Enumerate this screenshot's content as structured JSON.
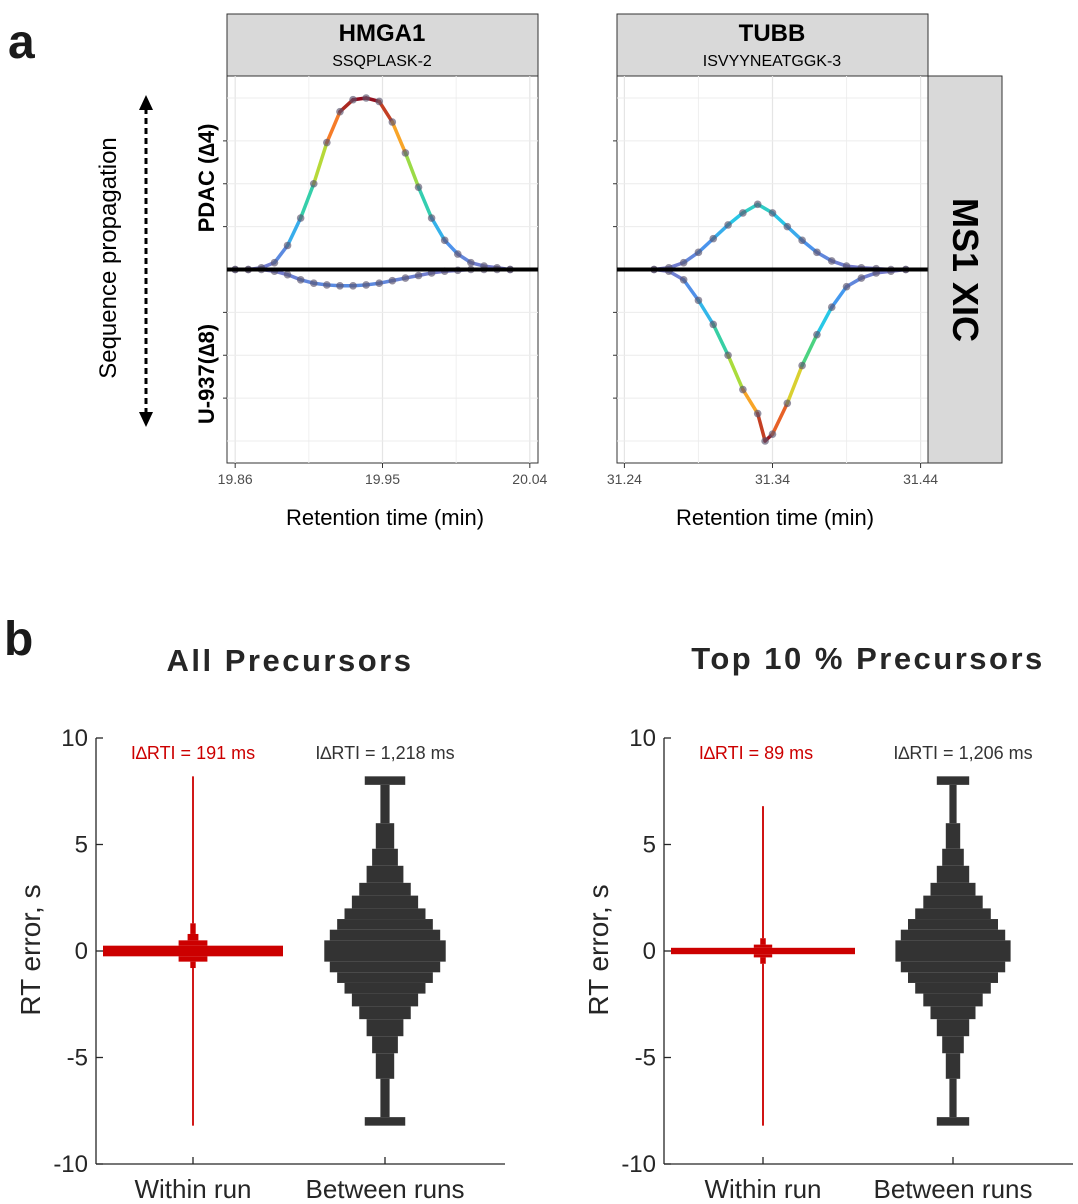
{
  "panel_a": {
    "letter": "a",
    "side_label": "Sequence propagation",
    "row_labels": [
      "PDAC (∆4)",
      "U-937(∆8)"
    ],
    "facet_label": "MS1 XIC",
    "x_label": "Retention time (min)"
  },
  "panel_b": {
    "letter": "b",
    "y_label": "RT error, s",
    "categories": [
      "Within run",
      "Between runs"
    ]
  },
  "chart_data": [
    {
      "type": "line",
      "title": "HMGA1",
      "subtitle": "SSQPLASK-2",
      "xlabel": "Retention time (min)",
      "xticks": [
        "19.86",
        "19.95",
        "20.04"
      ],
      "xlim": [
        19.855,
        20.045
      ],
      "ylim": [
        -1.05,
        1.05
      ],
      "series": [
        {
          "name": "PDAC (∆4)",
          "x": [
            19.86,
            19.868,
            19.876,
            19.884,
            19.892,
            19.9,
            19.908,
            19.916,
            19.924,
            19.932,
            19.94,
            19.948,
            19.956,
            19.964,
            19.972,
            19.98,
            19.988,
            19.996,
            20.004,
            20.012,
            20.02,
            20.028
          ],
          "y": [
            0,
            0,
            0.01,
            0.04,
            0.14,
            0.3,
            0.5,
            0.74,
            0.92,
            0.99,
            1.0,
            0.98,
            0.86,
            0.68,
            0.48,
            0.3,
            0.17,
            0.09,
            0.04,
            0.02,
            0.01,
            0
          ]
        },
        {
          "name": "U-937(∆8)",
          "x": [
            19.86,
            19.868,
            19.876,
            19.884,
            19.892,
            19.9,
            19.908,
            19.916,
            19.924,
            19.932,
            19.94,
            19.948,
            19.956,
            19.964,
            19.972,
            19.98,
            19.988,
            19.996,
            20.004,
            20.012,
            20.02,
            20.028
          ],
          "y": [
            0,
            0,
            0,
            -0.01,
            -0.03,
            -0.06,
            -0.08,
            -0.09,
            -0.095,
            -0.095,
            -0.09,
            -0.08,
            -0.065,
            -0.05,
            -0.035,
            -0.02,
            -0.01,
            -0.005,
            0,
            0,
            0,
            0
          ]
        }
      ]
    },
    {
      "type": "line",
      "title": "TUBB",
      "subtitle": "ISVYYNEATGGK-3",
      "xlabel": "Retention time (min)",
      "xticks": [
        "31.24",
        "31.34",
        "31.44"
      ],
      "xlim": [
        31.235,
        31.445
      ],
      "ylim": [
        -1.05,
        1.05
      ],
      "series": [
        {
          "name": "PDAC (∆4)",
          "x": [
            31.26,
            31.27,
            31.28,
            31.29,
            31.3,
            31.31,
            31.32,
            31.33,
            31.34,
            31.35,
            31.36,
            31.37,
            31.38,
            31.39,
            31.4,
            31.41,
            31.42,
            31.43
          ],
          "y": [
            0,
            0.01,
            0.04,
            0.1,
            0.18,
            0.26,
            0.33,
            0.38,
            0.33,
            0.25,
            0.17,
            0.1,
            0.05,
            0.02,
            0.01,
            0.005,
            0,
            0
          ]
        },
        {
          "name": "U-937(∆8)",
          "x": [
            31.26,
            31.27,
            31.28,
            31.29,
            31.3,
            31.31,
            31.32,
            31.33,
            31.335,
            31.34,
            31.35,
            31.36,
            31.37,
            31.38,
            31.39,
            31.4,
            31.41,
            31.42,
            31.43
          ],
          "y": [
            0,
            -0.01,
            -0.06,
            -0.18,
            -0.32,
            -0.5,
            -0.7,
            -0.84,
            -1.0,
            -0.96,
            -0.78,
            -0.56,
            -0.38,
            -0.22,
            -0.1,
            -0.05,
            -0.02,
            -0.01,
            0
          ]
        }
      ]
    },
    {
      "type": "histogram-violin",
      "title": "All Precursors",
      "ylabel": "RT error, s",
      "ylim": [
        -10,
        10
      ],
      "yticks": [
        10,
        5,
        0,
        -5,
        -10
      ],
      "categories": [
        "Within run",
        "Between runs"
      ],
      "annotations": [
        "I∆RTI = 191 ms",
        "I∆RTI = 1,218 ms"
      ],
      "colors": [
        "#cc0000",
        "#333333"
      ],
      "series": [
        {
          "name": "Within run",
          "bins": [
            [
              -8.2,
              -0.8,
              0.01
            ],
            [
              -0.8,
              -0.5,
              0.03
            ],
            [
              -0.5,
              -0.25,
              0.16
            ],
            [
              -0.25,
              0.25,
              1.0
            ],
            [
              0.25,
              0.5,
              0.16
            ],
            [
              0.5,
              0.8,
              0.06
            ],
            [
              0.8,
              1.3,
              0.03
            ],
            [
              1.3,
              8.2,
              0.01
            ]
          ]
        },
        {
          "name": "Between runs",
          "bins": [
            [
              -8.2,
              -7.8,
              0.22
            ],
            [
              -7.8,
              -6.0,
              0.05
            ],
            [
              -6.0,
              -4.8,
              0.1
            ],
            [
              -4.8,
              -4.0,
              0.14
            ],
            [
              -4.0,
              -3.2,
              0.2
            ],
            [
              -3.2,
              -2.6,
              0.28
            ],
            [
              -2.6,
              -2.0,
              0.36
            ],
            [
              -2.0,
              -1.5,
              0.44
            ],
            [
              -1.5,
              -1.0,
              0.52
            ],
            [
              -1.0,
              -0.5,
              0.6
            ],
            [
              -0.5,
              0.5,
              0.66
            ],
            [
              0.5,
              1.0,
              0.6
            ],
            [
              1.0,
              1.5,
              0.52
            ],
            [
              1.5,
              2.0,
              0.44
            ],
            [
              2.0,
              2.6,
              0.36
            ],
            [
              2.6,
              3.2,
              0.28
            ],
            [
              3.2,
              4.0,
              0.2
            ],
            [
              4.0,
              4.8,
              0.14
            ],
            [
              4.8,
              6.0,
              0.1
            ],
            [
              6.0,
              7.8,
              0.05
            ],
            [
              7.8,
              8.2,
              0.22
            ]
          ]
        }
      ]
    },
    {
      "type": "histogram-violin",
      "title": "Top 10 % Precursors",
      "ylabel": "RT error, s",
      "ylim": [
        -10,
        10
      ],
      "yticks": [
        10,
        5,
        0,
        -5,
        -10
      ],
      "categories": [
        "Within run",
        "Between runs"
      ],
      "annotations": [
        "I∆RTI = 89 ms",
        "I∆RTI = 1,206 ms"
      ],
      "colors": [
        "#cc0000",
        "#333333"
      ],
      "series": [
        {
          "name": "Within run",
          "bins": [
            [
              -8.2,
              -0.6,
              0.01
            ],
            [
              -0.6,
              -0.3,
              0.03
            ],
            [
              -0.3,
              -0.15,
              0.1
            ],
            [
              -0.15,
              0.15,
              1.0
            ],
            [
              0.15,
              0.3,
              0.1
            ],
            [
              0.3,
              0.6,
              0.03
            ],
            [
              0.6,
              6.8,
              0.01
            ]
          ]
        },
        {
          "name": "Between runs",
          "bins": [
            [
              -8.2,
              -7.8,
              0.18
            ],
            [
              -7.8,
              -6.0,
              0.04
            ],
            [
              -6.0,
              -4.8,
              0.08
            ],
            [
              -4.8,
              -4.0,
              0.12
            ],
            [
              -4.0,
              -3.2,
              0.18
            ],
            [
              -3.2,
              -2.6,
              0.25
            ],
            [
              -2.6,
              -2.0,
              0.33
            ],
            [
              -2.0,
              -1.5,
              0.42
            ],
            [
              -1.5,
              -1.0,
              0.5
            ],
            [
              -1.0,
              -0.5,
              0.58
            ],
            [
              -0.5,
              0.5,
              0.64
            ],
            [
              0.5,
              1.0,
              0.58
            ],
            [
              1.0,
              1.5,
              0.5
            ],
            [
              1.5,
              2.0,
              0.42
            ],
            [
              2.0,
              2.6,
              0.33
            ],
            [
              2.6,
              3.2,
              0.25
            ],
            [
              3.2,
              4.0,
              0.18
            ],
            [
              4.0,
              4.8,
              0.12
            ],
            [
              4.8,
              6.0,
              0.08
            ],
            [
              6.0,
              7.8,
              0.04
            ],
            [
              7.8,
              8.2,
              0.18
            ]
          ]
        }
      ]
    }
  ]
}
